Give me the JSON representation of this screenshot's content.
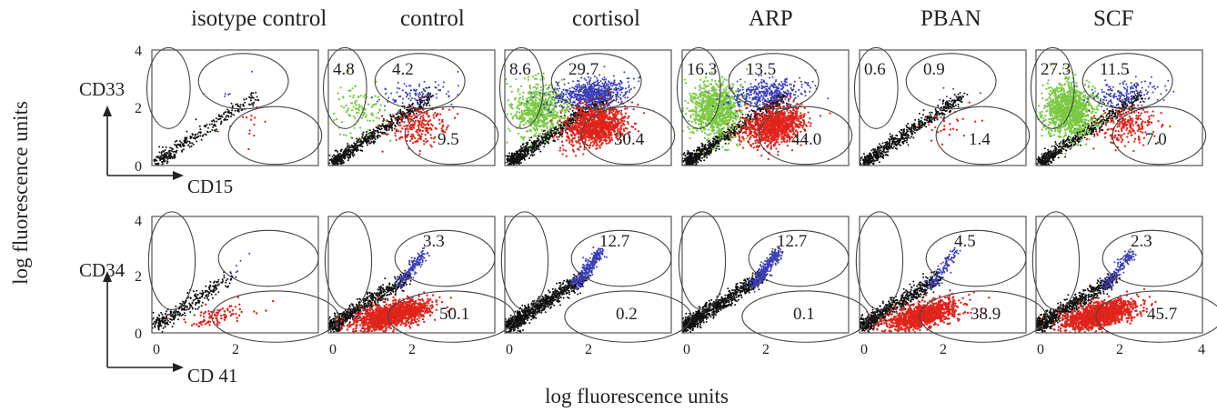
{
  "figure": {
    "y_axis_label": "log fluorescence units",
    "x_axis_label": "log fluorescence units",
    "columns": [
      "isotype control",
      "control",
      "cortisol",
      "ARP",
      "PBAN",
      "SCF"
    ],
    "rows": [
      {
        "y_marker": "CD33",
        "x_marker": "CD15"
      },
      {
        "y_marker": "CD34",
        "x_marker": "CD 41"
      }
    ],
    "axis_ticks": {
      "top_row_y": [
        "4",
        "2",
        "0"
      ],
      "bottom_row_y": [
        "4",
        "2",
        "0"
      ],
      "bottom_row_x": [
        "0",
        "2",
        "4"
      ]
    },
    "colors": {
      "background_events": "#111111",
      "green_population": "#7ac943",
      "blue_population": "#3b3fb8",
      "red_population": "#e0241b",
      "gate_outline": "#444444"
    }
  },
  "chart_data": [
    {
      "type": "scatter",
      "title": "CD33 vs CD15",
      "xlabel": "CD15",
      "ylabel": "CD33",
      "xlim": [
        0,
        4
      ],
      "ylim": [
        0,
        4
      ],
      "gates": [
        "upper-left (CD33+CD15-)",
        "upper-right (CD33+CD15+)",
        "lower-right (CD33-CD15+)"
      ],
      "panels": [
        {
          "condition": "isotype control",
          "upper_left": null,
          "upper_right": null,
          "lower_right": null
        },
        {
          "condition": "control",
          "upper_left": "4.8",
          "upper_right": "4.2",
          "lower_right": "9.5"
        },
        {
          "condition": "cortisol",
          "upper_left": "8.6",
          "upper_right": "29.7",
          "lower_right": "30.4"
        },
        {
          "condition": "ARP",
          "upper_left": "16.3",
          "upper_right": "13.5",
          "lower_right": "44.0"
        },
        {
          "condition": "PBAN",
          "upper_left": "0.6",
          "upper_right": "0.9",
          "lower_right": "1.4"
        },
        {
          "condition": "SCF",
          "upper_left": "27.3",
          "upper_right": "11.5",
          "lower_right": "7.0"
        }
      ]
    },
    {
      "type": "scatter",
      "title": "CD34 vs CD 41",
      "xlabel": "CD 41",
      "ylabel": "CD34",
      "xlim": [
        0,
        4
      ],
      "ylim": [
        0,
        4
      ],
      "gates": [
        "upper-left (CD34+CD41-)",
        "upper-right (CD34+CD41+)",
        "lower-right (CD34-CD41+)"
      ],
      "panels": [
        {
          "condition": "isotype control",
          "upper_right": null,
          "lower_right": null
        },
        {
          "condition": "control",
          "upper_right": "3.3",
          "lower_right": "50.1"
        },
        {
          "condition": "cortisol",
          "upper_right": "12.7",
          "lower_right": "0.2"
        },
        {
          "condition": "ARP",
          "upper_right": "12.7",
          "lower_right": "0.1"
        },
        {
          "condition": "PBAN",
          "upper_right": "4.5",
          "lower_right": "38.9"
        },
        {
          "condition": "SCF",
          "upper_right": "2.3",
          "lower_right": "45.7"
        }
      ]
    }
  ]
}
